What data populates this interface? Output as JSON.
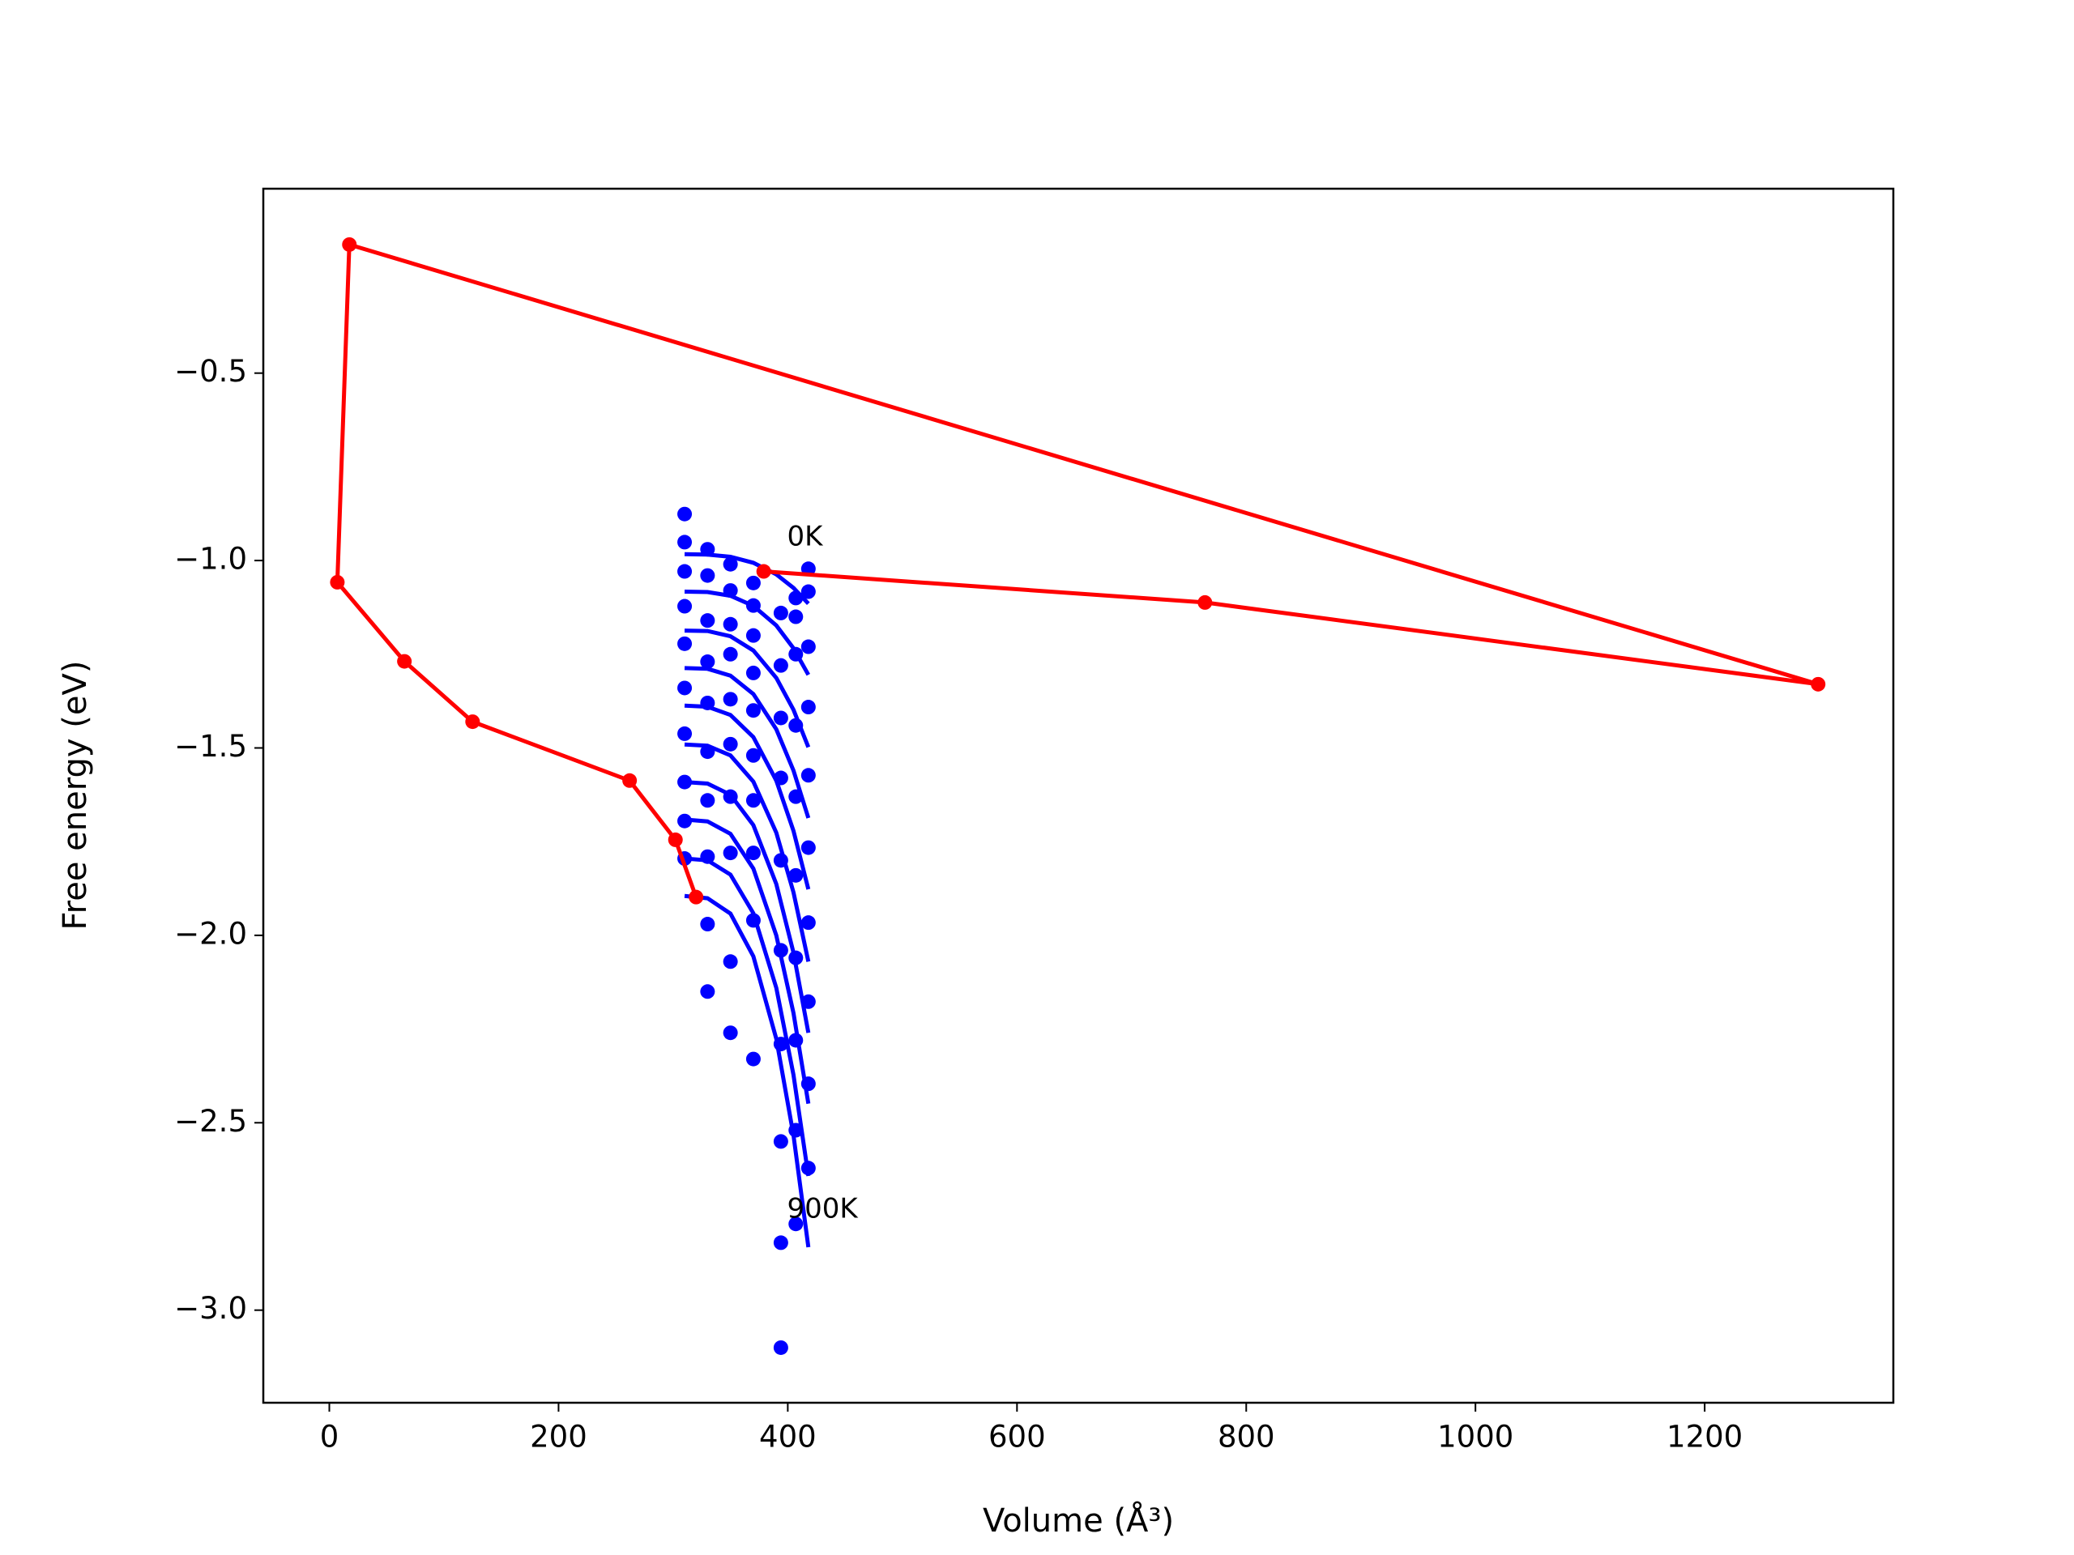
{
  "chart_data": {
    "type": "scatter",
    "xlabel": "Volume (Å³)",
    "ylabel": "Free energy (eV)",
    "xlim": [
      -57.6,
      1364.6
    ],
    "ylim": [
      -3.247,
      -0.008
    ],
    "xticks": [
      0,
      200,
      400,
      600,
      800,
      1000,
      1200
    ],
    "yticks": [
      {
        "value": -3.0,
        "label": "−3.0"
      },
      {
        "value": -2.5,
        "label": "−2.5"
      },
      {
        "value": -2.0,
        "label": "−2.0"
      },
      {
        "value": -1.5,
        "label": "−1.5"
      },
      {
        "value": -1.0,
        "label": "−1.0"
      },
      {
        "value": -0.5,
        "label": "−0.5"
      }
    ],
    "annotations": [
      "0K",
      "900K"
    ],
    "x": [
      310,
      330,
      350,
      370,
      394,
      407,
      418
    ],
    "series": [
      {
        "color": "#0000ff",
        "values": [
          -0.876,
          -0.97,
          -1.01,
          -1.06,
          -1.14,
          -1.1,
          -1.022
        ]
      },
      {
        "color": "#0000ff",
        "values": [
          -0.951,
          -1.04,
          -1.08,
          -1.12,
          -1.28,
          -1.15,
          -1.083
        ]
      },
      {
        "color": "#0000ff",
        "values": [
          -1.029,
          -1.16,
          -1.17,
          -1.2,
          -1.42,
          -1.25,
          -1.23
        ]
      },
      {
        "color": "#0000ff",
        "values": [
          -1.122,
          -1.27,
          -1.25,
          -1.3,
          -1.58,
          -1.44,
          -1.391
        ]
      },
      {
        "color": "#0000ff",
        "values": [
          -1.222,
          -1.38,
          -1.37,
          -1.4,
          -1.8,
          -1.63,
          -1.573
        ]
      },
      {
        "color": "#0000ff",
        "values": [
          -1.34,
          -1.51,
          -1.49,
          -1.52,
          -2.04,
          -1.84,
          -1.766
        ]
      },
      {
        "color": "#0000ff",
        "values": [
          -1.462,
          -1.64,
          -1.63,
          -1.64,
          -2.29,
          -2.06,
          -1.966
        ]
      },
      {
        "color": "#0000ff",
        "values": [
          -1.591,
          -1.79,
          -1.78,
          -1.78,
          -2.55,
          -2.28,
          -2.177
        ]
      },
      {
        "color": "#0000ff",
        "values": [
          -1.695,
          -1.97,
          -2.07,
          -1.96,
          -2.82,
          -2.52,
          -2.396
        ]
      },
      {
        "color": "#0000ff",
        "values": [
          -1.795,
          -2.15,
          -2.26,
          -2.33,
          -3.1,
          -2.77,
          -2.621
        ]
      }
    ],
    "fits": {
      "color": "#0000ff",
      "x": [
        310,
        330,
        350,
        370,
        390,
        405,
        418
      ],
      "series": [
        {
          "values": [
            -0.983,
            -0.984,
            -0.99,
            -1.006,
            -1.037,
            -1.073,
            -1.115
          ]
        },
        {
          "values": [
            -1.083,
            -1.084,
            -1.094,
            -1.121,
            -1.173,
            -1.234,
            -1.305
          ]
        },
        {
          "values": [
            -1.187,
            -1.188,
            -1.202,
            -1.24,
            -1.313,
            -1.398,
            -1.498
          ]
        },
        {
          "values": [
            -1.287,
            -1.289,
            -1.307,
            -1.356,
            -1.45,
            -1.56,
            -1.687
          ]
        },
        {
          "values": [
            -1.387,
            -1.39,
            -1.412,
            -1.471,
            -1.587,
            -1.721,
            -1.877
          ]
        },
        {
          "values": [
            -1.491,
            -1.494,
            -1.52,
            -1.59,
            -1.726,
            -1.885,
            -2.07
          ]
        },
        {
          "values": [
            -1.591,
            -1.595,
            -1.625,
            -1.706,
            -1.863,
            -2.046,
            -2.26
          ]
        },
        {
          "values": [
            -1.691,
            -1.696,
            -1.729,
            -1.822,
            -2.0,
            -2.207,
            -2.449
          ]
        },
        {
          "values": [
            -1.795,
            -1.8,
            -1.838,
            -1.941,
            -2.14,
            -2.372,
            -2.642
          ]
        },
        {
          "values": [
            -1.895,
            -1.901,
            -1.942,
            -2.056,
            -2.276,
            -2.533,
            -2.832
          ]
        }
      ]
    },
    "path": {
      "color": "#ff0000",
      "x": [
        379,
        764,
        1299,
        17.5,
        7,
        65.5,
        125,
        262,
        302,
        320
      ],
      "values": [
        -1.029,
        -1.112,
        -1.33,
        -0.157,
        -1.058,
        -1.269,
        -1.43,
        -1.587,
        -1.745,
        -1.898
      ]
    }
  }
}
